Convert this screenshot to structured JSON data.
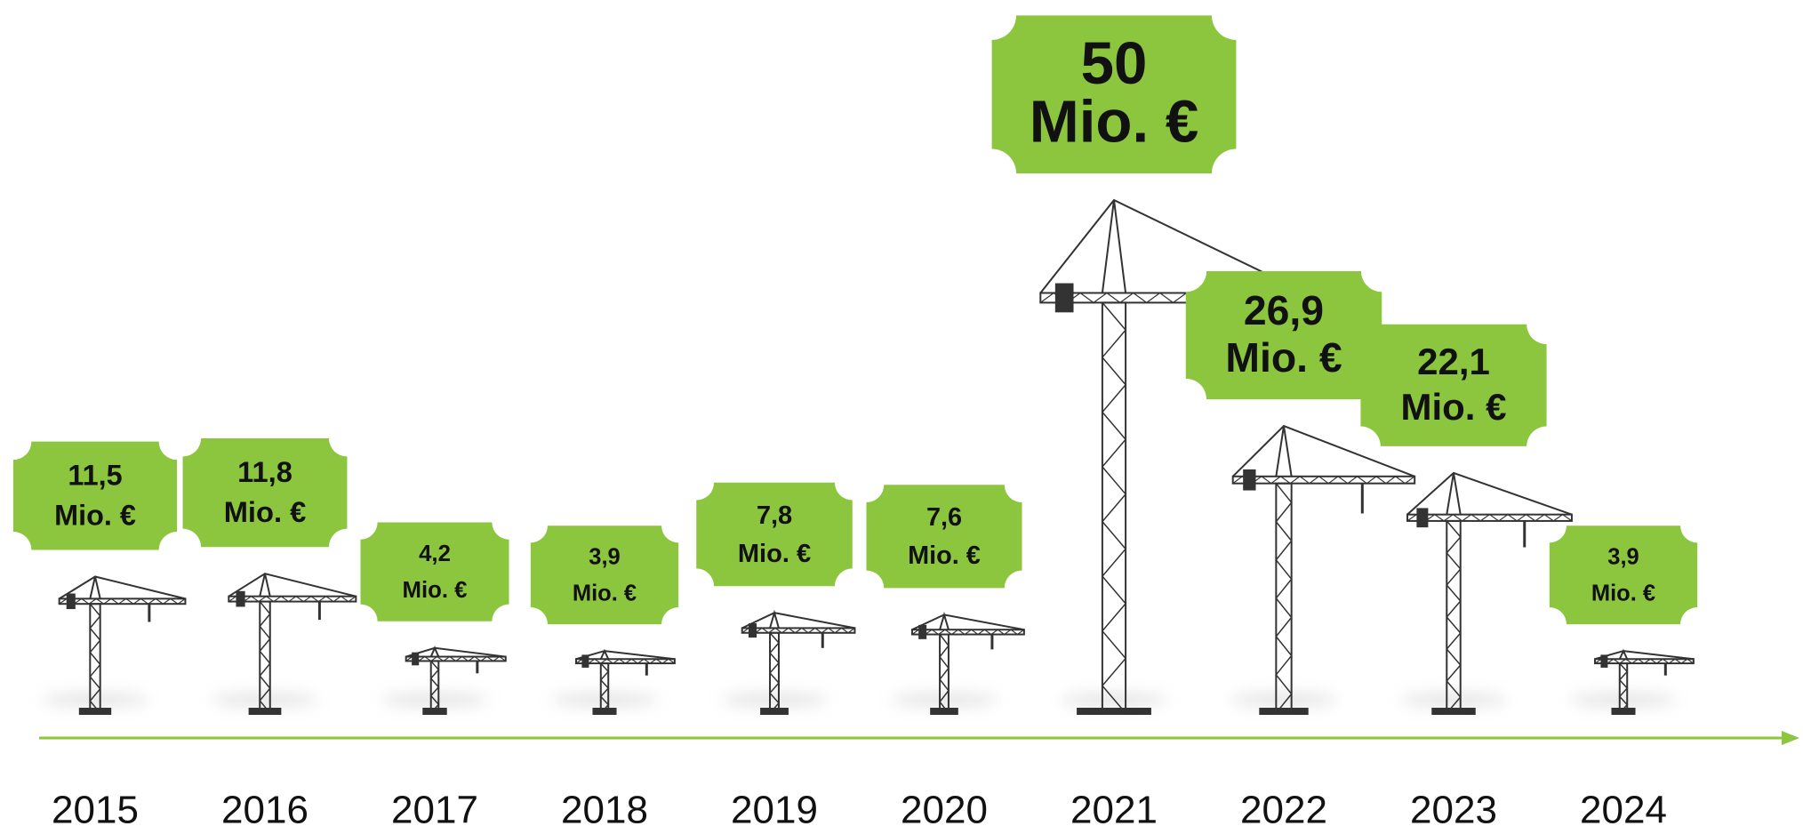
{
  "chart_data": {
    "type": "crane",
    "categories": [
      "2015",
      "2016",
      "2017",
      "2018",
      "2019",
      "2020",
      "2021",
      "2022",
      "2023",
      "2024"
    ],
    "values": [
      11.5,
      11.8,
      4.2,
      3.9,
      7.8,
      7.6,
      50,
      26.9,
      22.1,
      3.9
    ],
    "value_labels": [
      "11,5",
      "11,8",
      "4,2",
      "3,9",
      "7,8",
      "7,6",
      "50",
      "26,9",
      "22,1",
      "3,9"
    ],
    "unit": "Mio. €",
    "color": "#8cc63e"
  }
}
